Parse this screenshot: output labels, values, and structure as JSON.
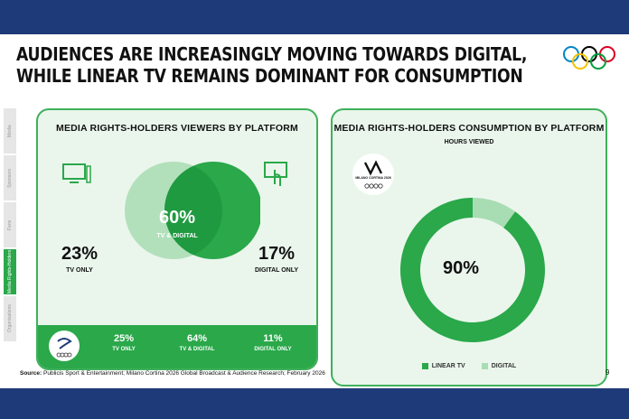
{
  "title_lines": [
    "AUDIENCES ARE INCREASINGLY MOVING TOWARDS DIGITAL,",
    "WHILE LINEAR TV REMAINS DOMINANT FOR CONSUMPTION"
  ],
  "side_tabs": [
    "Media",
    "Sponsors",
    "Fans",
    "Media Rights-Holders",
    "Organisations"
  ],
  "left_panel": {
    "title": "MEDIA RIGHTS-HOLDERS VIEWERS BY PLATFORM",
    "tv_only": {
      "value": "23%",
      "label": "TV ONLY"
    },
    "both": {
      "value": "60%",
      "label": "TV & DIGITAL"
    },
    "digital_only": {
      "value": "17%",
      "label": "DIGITAL ONLY"
    },
    "band": [
      {
        "value": "25%",
        "label": "TV ONLY"
      },
      {
        "value": "64%",
        "label": "TV & DIGITAL"
      },
      {
        "value": "11%",
        "label": "DIGITAL ONLY"
      }
    ]
  },
  "right_panel": {
    "title": "MEDIA RIGHTS-HOLDERS CONSUMPTION BY PLATFORM",
    "subtitle": "HOURS VIEWED",
    "center_label": "90%",
    "logo_text": "MILANO CORTINA 2026"
  },
  "chart_data": [
    {
      "type": "venn",
      "title": "MEDIA RIGHTS-HOLDERS VIEWERS BY PLATFORM",
      "sets": [
        {
          "name": "TV ONLY",
          "value": 23
        },
        {
          "name": "TV & DIGITAL",
          "value": 60
        },
        {
          "name": "DIGITAL ONLY",
          "value": 17
        }
      ],
      "comparison": [
        {
          "name": "TV ONLY",
          "value": 25
        },
        {
          "name": "TV & DIGITAL",
          "value": 64
        },
        {
          "name": "DIGITAL ONLY",
          "value": 11
        }
      ]
    },
    {
      "type": "pie",
      "title": "MEDIA RIGHTS-HOLDERS CONSUMPTION BY PLATFORM",
      "subtitle": "HOURS VIEWED",
      "categories": [
        "LINEAR TV",
        "DIGITAL"
      ],
      "values": [
        90,
        10
      ],
      "colors": [
        "#2aa84a",
        "#a8dcb3"
      ],
      "legend": "bottom"
    }
  ],
  "colors": {
    "green": "#2aa84a",
    "light_green": "#a8dcb3",
    "navy": "#1f3a78"
  },
  "source_label": "Source:",
  "source_text": "Publicis Sport & Entertainment; Milano Cortina 2026 Global Broadcast & Audience Research; February 2026",
  "page_number": "9"
}
